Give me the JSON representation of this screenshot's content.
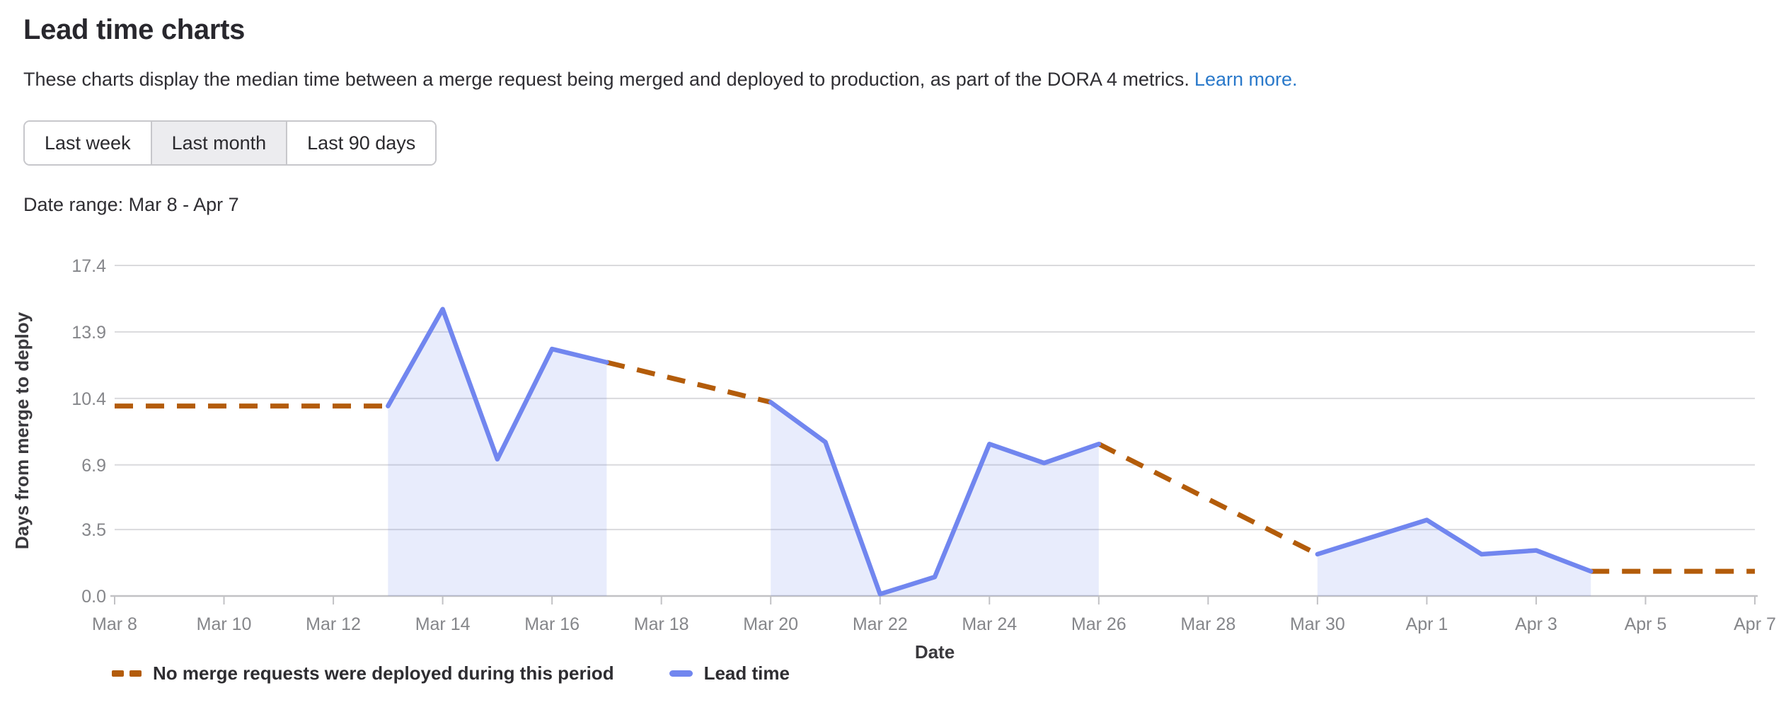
{
  "header": {
    "title": "Lead time charts",
    "description": "These charts display the median time between a merge request being merged and deployed to production, as part of the DORA 4 metrics.",
    "learn_more_label": "Learn more.",
    "link_color": "#2a79ca"
  },
  "range_buttons": [
    {
      "label": "Last week",
      "selected": false
    },
    {
      "label": "Last month",
      "selected": true
    },
    {
      "label": "Last 90 days",
      "selected": false
    }
  ],
  "date_range_label": "Date range: Mar 8 - Apr 7",
  "chart_data": {
    "type": "line",
    "xlabel": "Date",
    "ylabel": "Days from merge to deploy",
    "x_ticks": [
      "Mar 8",
      "Mar 10",
      "Mar 12",
      "Mar 14",
      "Mar 16",
      "Mar 18",
      "Mar 20",
      "Mar 22",
      "Mar 24",
      "Mar 26",
      "Mar 28",
      "Mar 30",
      "Apr 1",
      "Apr 3",
      "Apr 5",
      "Apr 7"
    ],
    "x_unit": "day index from Mar 8",
    "x_range_days": 30,
    "y_ticks": [
      0.0,
      3.5,
      6.9,
      10.4,
      13.9,
      17.4
    ],
    "y_tick_labels": [
      "0.0",
      "3.5",
      "6.9",
      "10.4",
      "13.9",
      "17.4"
    ],
    "ylim": [
      0,
      17.4
    ],
    "grid": true,
    "grid_color": "#dadadd",
    "axis_color": "#c2c2c5",
    "tick_text_color": "#85868a",
    "axis_title_color": "#3a393d",
    "legend_position": "bottom-left",
    "series": [
      {
        "name": "Lead time",
        "style": "solid",
        "color": "#7186ef",
        "fill_color": "rgba(113,134,239,0.16)",
        "segments": [
          {
            "points": [
              [
                5,
                10.0
              ],
              [
                6,
                15.1
              ],
              [
                7,
                7.2
              ],
              [
                8,
                13.0
              ],
              [
                9,
                12.3
              ]
            ]
          },
          {
            "points": [
              [
                12,
                10.2
              ],
              [
                13,
                8.1
              ],
              [
                14,
                0.1
              ],
              [
                15,
                1.0
              ],
              [
                16,
                8.0
              ],
              [
                17,
                7.0
              ],
              [
                18,
                8.0
              ]
            ]
          },
          {
            "points": [
              [
                22,
                2.2
              ],
              [
                24,
                4.0
              ],
              [
                25,
                2.2
              ],
              [
                26,
                2.4
              ],
              [
                27,
                1.3
              ]
            ]
          }
        ]
      },
      {
        "name": "No merge requests were deployed during this period",
        "style": "dashed",
        "color": "#b35c0a",
        "segments": [
          {
            "points": [
              [
                0,
                10.0
              ],
              [
                5,
                10.0
              ]
            ]
          },
          {
            "points": [
              [
                9,
                12.3
              ],
              [
                12,
                10.2
              ]
            ]
          },
          {
            "points": [
              [
                18,
                8.0
              ],
              [
                22,
                2.2
              ]
            ]
          },
          {
            "points": [
              [
                27,
                1.3
              ],
              [
                30,
                1.3
              ]
            ]
          }
        ]
      }
    ]
  }
}
